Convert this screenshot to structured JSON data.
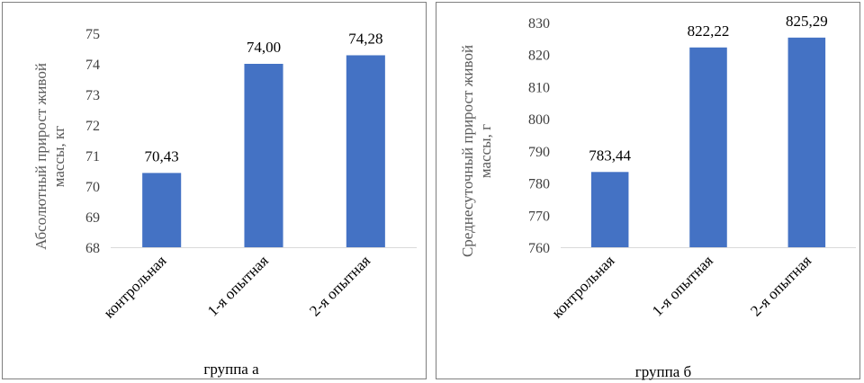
{
  "chart_data": [
    {
      "type": "bar",
      "categories": [
        "контрольная",
        "1-я опытная",
        "2-я опытная"
      ],
      "values": [
        70.43,
        74.0,
        74.28
      ],
      "data_labels": [
        "70,43",
        "74,00",
        "74,28"
      ],
      "yticks": [
        "68",
        "69",
        "70",
        "71",
        "72",
        "73",
        "74",
        "75"
      ],
      "ylim": [
        68,
        75
      ],
      "ylabel_lines": [
        "Абсолютный прирост живой",
        "массы, кг"
      ],
      "xlabel": "группа а",
      "bar_color": "#4472c4",
      "grid": false
    },
    {
      "type": "bar",
      "categories": [
        "контрольная",
        "1-я опытная",
        "2-я опытная"
      ],
      "values": [
        783.44,
        822.22,
        825.29
      ],
      "data_labels": [
        "783,44",
        "822,22",
        "825,29"
      ],
      "yticks": [
        "760",
        "770",
        "780",
        "790",
        "800",
        "810",
        "820",
        "830"
      ],
      "ylim": [
        760,
        830
      ],
      "ylabel_lines": [
        "Среднесуточный прирост живой",
        "массы, г"
      ],
      "xlabel": "группа б",
      "bar_color": "#4472c4",
      "grid": false
    }
  ]
}
